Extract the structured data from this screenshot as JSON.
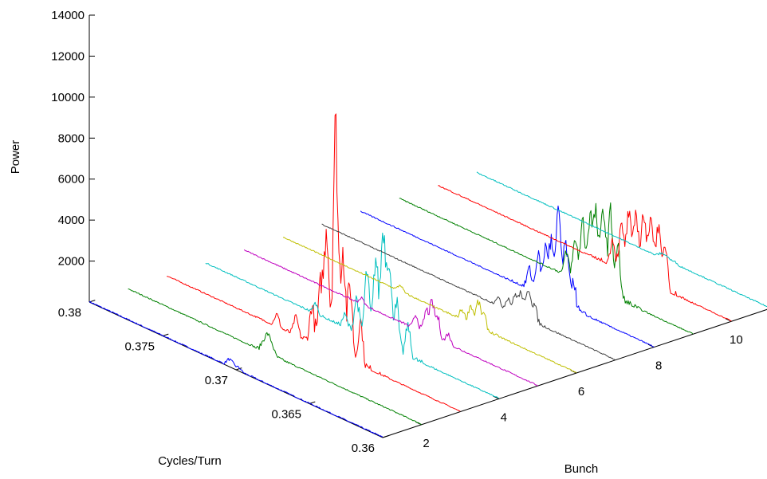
{
  "chart_data": {
    "type": "line",
    "title": "",
    "xlabel": "Bunch",
    "ylabel": "Cycles/Turn",
    "zlabel": "Power",
    "view": "3d-waterfall",
    "grid": false,
    "legend": "none",
    "x_range": [
      1,
      11
    ],
    "y_range": [
      0.36,
      0.38
    ],
    "z_range": [
      0,
      14000
    ],
    "x_ticks": [
      "2",
      "4",
      "6",
      "8",
      "10"
    ],
    "y_ticks": [
      "0.36",
      "0.365",
      "0.37",
      "0.375",
      "0.38"
    ],
    "z_ticks": [
      "2000",
      "4000",
      "6000",
      "8000",
      "10000",
      "12000",
      "14000"
    ],
    "baseline_power": 20,
    "series": [
      {
        "bunch": 1,
        "color": "#0000ff",
        "peaks": [
          [
            0.3705,
            300
          ],
          [
            0.3702,
            200
          ],
          [
            0.3698,
            150
          ]
        ]
      },
      {
        "bunch": 2,
        "color": "#008000",
        "peaks": [
          [
            0.3705,
            800
          ],
          [
            0.3702,
            500
          ],
          [
            0.3708,
            400
          ]
        ]
      },
      {
        "bunch": 3,
        "color": "#ff0000",
        "peaks": [
          [
            0.3685,
            11000
          ],
          [
            0.368,
            5500
          ],
          [
            0.3691,
            6000
          ],
          [
            0.3675,
            3600
          ],
          [
            0.3695,
            3000
          ],
          [
            0.3668,
            2200
          ],
          [
            0.3701,
            1800
          ],
          [
            0.3712,
            900
          ],
          [
            0.3725,
            600
          ]
        ]
      },
      {
        "bunch": 4,
        "color": "#00bfbf",
        "peaks": [
          [
            0.3679,
            5500
          ],
          [
            0.3675,
            4200
          ],
          [
            0.3684,
            4000
          ],
          [
            0.369,
            3200
          ],
          [
            0.367,
            2500
          ],
          [
            0.3662,
            1500
          ],
          [
            0.3697,
            1700
          ],
          [
            0.3705,
            600
          ],
          [
            0.3725,
            500
          ]
        ]
      },
      {
        "bunch": 5,
        "color": "#bf00bf",
        "peaks": [
          [
            0.3672,
            1600
          ],
          [
            0.3676,
            1100
          ],
          [
            0.3668,
            1000
          ],
          [
            0.3683,
            700
          ],
          [
            0.3661,
            500
          ],
          [
            0.372,
            300
          ]
        ]
      },
      {
        "bunch": 6,
        "color": "#bfbf00",
        "peaks": [
          [
            0.3667,
            1200
          ],
          [
            0.3672,
            900
          ],
          [
            0.3663,
            700
          ],
          [
            0.3678,
            500
          ],
          [
            0.372,
            300
          ]
        ]
      },
      {
        "bunch": 7,
        "color": "#404040",
        "peaks": [
          [
            0.3659,
            1500
          ],
          [
            0.3664,
            1100
          ],
          [
            0.3668,
            900
          ],
          [
            0.3655,
            800
          ],
          [
            0.3673,
            600
          ],
          [
            0.368,
            400
          ]
        ]
      },
      {
        "bunch": 8,
        "color": "#0000ff",
        "peaks": [
          [
            0.3665,
            4500
          ],
          [
            0.366,
            3000
          ],
          [
            0.367,
            2700
          ],
          [
            0.3674,
            2300
          ],
          [
            0.3679,
            1900
          ],
          [
            0.3655,
            1500
          ],
          [
            0.3685,
            1000
          ]
        ]
      },
      {
        "bunch": 9,
        "color": "#008000",
        "peaks": [
          [
            0.3656,
            4000
          ],
          [
            0.3661,
            4200
          ],
          [
            0.3666,
            3600
          ],
          [
            0.367,
            3400
          ],
          [
            0.3675,
            3000
          ],
          [
            0.3651,
            2500
          ],
          [
            0.368,
            1900
          ],
          [
            0.3686,
            1100
          ]
        ]
      },
      {
        "bunch": 10,
        "color": "#ff0000",
        "peaks": [
          [
            0.365,
            3000
          ],
          [
            0.3655,
            3500
          ],
          [
            0.366,
            3200
          ],
          [
            0.3665,
            3100
          ],
          [
            0.367,
            2900
          ],
          [
            0.3645,
            2200
          ],
          [
            0.3675,
            2100
          ],
          [
            0.3681,
            1300
          ]
        ]
      },
      {
        "bunch": 11,
        "color": "#00bfbf",
        "peaks": [
          [
            0.3672,
            200
          ],
          [
            0.3675,
            150
          ],
          [
            0.3669,
            120
          ],
          [
            0.3665,
            100
          ]
        ]
      }
    ]
  }
}
